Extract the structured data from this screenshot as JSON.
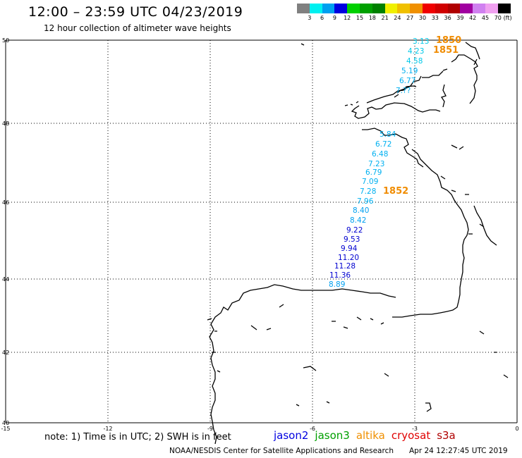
{
  "header": {
    "title": "12:00 – 23:59 UTC 04/23/2019",
    "subtitle": "12 hour collection of altimeter wave heights"
  },
  "legend": {
    "unit": "(ft)",
    "colors": [
      "#808080",
      "#00f0f0",
      "#00a0f0",
      "#0000e0",
      "#00d000",
      "#00a000",
      "#008000",
      "#f0f000",
      "#f0c000",
      "#f09000",
      "#f00000",
      "#d00000",
      "#b00000",
      "#a000a0",
      "#d080f0",
      "#f0a0f0",
      "#000000"
    ],
    "labels": [
      "3",
      "6",
      "9",
      "12",
      "15",
      "18",
      "21",
      "24",
      "27",
      "30",
      "33",
      "36",
      "39",
      "42",
      "45",
      "70"
    ]
  },
  "axes": {
    "lon_labels": [
      "-15",
      "-12",
      "-9",
      "-6",
      "-3",
      "0"
    ],
    "lat_labels": [
      "50",
      "48",
      "46",
      "44",
      "42",
      "40"
    ]
  },
  "track_points": [
    {
      "v": "3.13",
      "c": "#00c8e8"
    },
    {
      "v": "4.23",
      "c": "#00c8e8"
    },
    {
      "v": "4.58",
      "c": "#00c8e8"
    },
    {
      "v": "5.19",
      "c": "#00b0f0"
    },
    {
      "v": "6.77",
      "c": "#00b0f0"
    },
    {
      "v": "7.??",
      "c": "#00b0f0"
    },
    {
      "v": "5.84",
      "c": "#00b0f0"
    },
    {
      "v": "6.72",
      "c": "#00b0f0"
    },
    {
      "v": "6.48",
      "c": "#00b0f0"
    },
    {
      "v": "7.23",
      "c": "#00b0f0"
    },
    {
      "v": "6.79",
      "c": "#00b0f0"
    },
    {
      "v": "7.09",
      "c": "#00b0f0"
    },
    {
      "v": "7.28",
      "c": "#00b0f0"
    },
    {
      "v": "7.96",
      "c": "#00b0f0"
    },
    {
      "v": "8.40",
      "c": "#00a0f0"
    },
    {
      "v": "8.42",
      "c": "#00a0f0"
    },
    {
      "v": "9.22",
      "c": "#0000d0"
    },
    {
      "v": "9.53",
      "c": "#0000d0"
    },
    {
      "v": "9.94",
      "c": "#0000d0"
    },
    {
      "v": "11.20",
      "c": "#0000d0"
    },
    {
      "v": "11.28",
      "c": "#0000d0"
    },
    {
      "v": "11.36",
      "c": "#0000d0"
    },
    {
      "v": "8.89",
      "c": "#00a0f0"
    }
  ],
  "time_labels": [
    "1850",
    "1851",
    "1852"
  ],
  "time_label_color": "#f08c00",
  "note": "note:  1) Time is in UTC;  2) SWH is in feet",
  "satellites": [
    {
      "name": "jason2",
      "color": "#0000e0"
    },
    {
      "name": "jason3",
      "color": "#00a000"
    },
    {
      "name": "altika",
      "color": "#f09000"
    },
    {
      "name": "cryosat",
      "color": "#e00000"
    },
    {
      "name": "s3a",
      "color": "#b00000"
    }
  ],
  "credit": "NOAA/NESDIS Center for Satellite Applications and Research",
  "credit_time": "Apr 24 12:27:45 UTC 2019"
}
